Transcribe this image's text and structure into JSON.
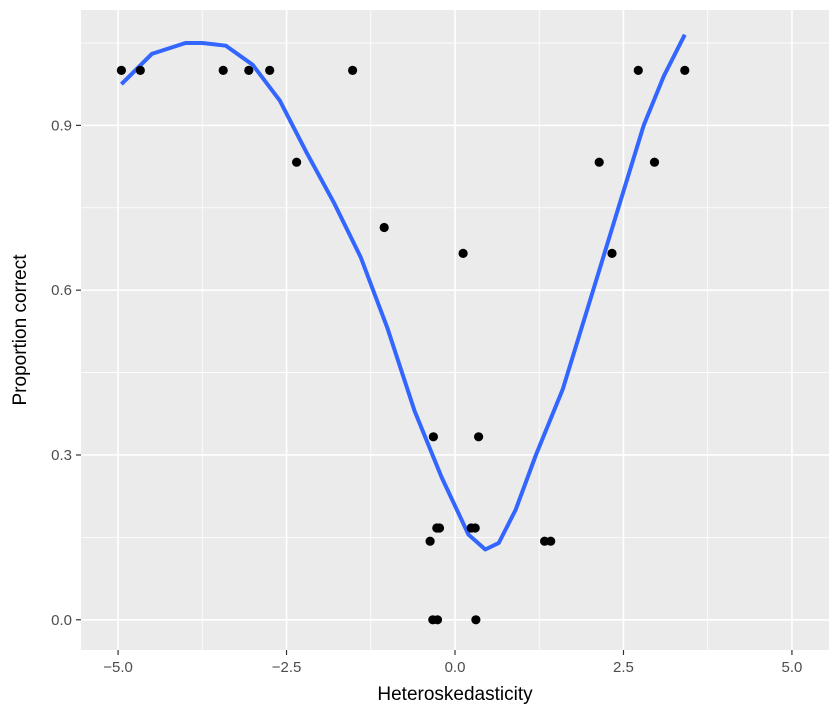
{
  "chart_data": {
    "type": "scatter",
    "title": "",
    "xlabel": "Heteroskedasticity",
    "ylabel": "Proportion correct",
    "xlim": [
      -5.55,
      5.55
    ],
    "ylim": [
      -0.055,
      1.11
    ],
    "x_ticks": [
      -5.0,
      -2.5,
      0.0,
      2.5,
      5.0
    ],
    "x_tick_labels": [
      "−5.0",
      "−2.5",
      "0.0",
      "2.5",
      "5.0"
    ],
    "y_ticks": [
      0.0,
      0.3,
      0.6,
      0.9
    ],
    "y_tick_labels": [
      "0.0",
      "0.3",
      "0.6",
      "0.9"
    ],
    "grid": true,
    "legend": "none",
    "points": [
      {
        "x": -4.95,
        "y": 1.0
      },
      {
        "x": -4.67,
        "y": 1.0
      },
      {
        "x": -3.44,
        "y": 1.0
      },
      {
        "x": -3.06,
        "y": 1.0
      },
      {
        "x": -2.75,
        "y": 1.0
      },
      {
        "x": -2.35,
        "y": 0.833
      },
      {
        "x": -1.52,
        "y": 1.0
      },
      {
        "x": -1.05,
        "y": 0.714
      },
      {
        "x": 0.12,
        "y": 0.667
      },
      {
        "x": -0.32,
        "y": 0.333
      },
      {
        "x": 0.35,
        "y": 0.333
      },
      {
        "x": -0.37,
        "y": 0.143
      },
      {
        "x": -0.27,
        "y": 0.167
      },
      {
        "x": -0.23,
        "y": 0.167
      },
      {
        "x": 0.24,
        "y": 0.167
      },
      {
        "x": 0.3,
        "y": 0.167
      },
      {
        "x": -0.33,
        "y": 0.0
      },
      {
        "x": -0.26,
        "y": 0.0
      },
      {
        "x": 0.31,
        "y": 0.0
      },
      {
        "x": 1.33,
        "y": 0.143
      },
      {
        "x": 1.42,
        "y": 0.143
      },
      {
        "x": 2.14,
        "y": 0.833
      },
      {
        "x": 2.33,
        "y": 0.667
      },
      {
        "x": 2.72,
        "y": 1.0
      },
      {
        "x": 2.96,
        "y": 0.833
      },
      {
        "x": 3.41,
        "y": 1.0
      }
    ],
    "smooth_line": {
      "color": "#3366FF",
      "x": [
        -4.95,
        -4.5,
        -4.0,
        -3.75,
        -3.4,
        -3.0,
        -2.6,
        -2.2,
        -1.8,
        -1.4,
        -1.0,
        -0.6,
        -0.2,
        0.2,
        0.45,
        0.65,
        0.9,
        1.2,
        1.6,
        2.0,
        2.4,
        2.8,
        3.1,
        3.41
      ],
      "y": [
        0.975,
        1.03,
        1.05,
        1.05,
        1.045,
        1.01,
        0.945,
        0.85,
        0.76,
        0.66,
        0.53,
        0.38,
        0.26,
        0.155,
        0.128,
        0.14,
        0.2,
        0.3,
        0.42,
        0.58,
        0.74,
        0.9,
        0.99,
        1.065
      ]
    },
    "colors": {
      "panel_background": "#EBEBEB",
      "grid_major": "#FFFFFF",
      "point": "#000000",
      "line": "#3366FF"
    }
  }
}
